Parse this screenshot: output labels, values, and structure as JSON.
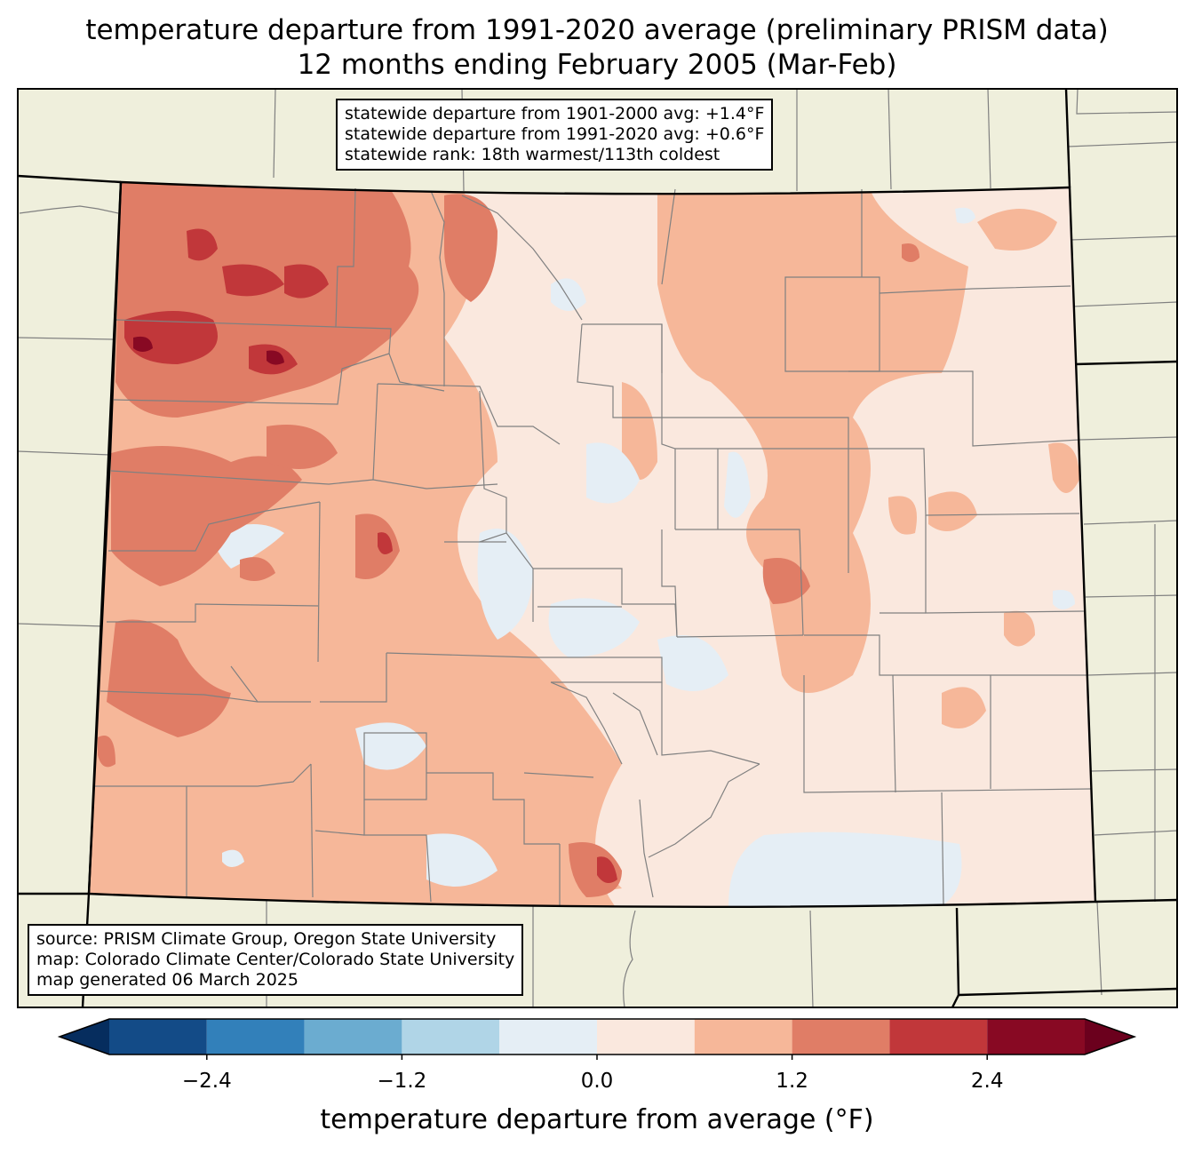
{
  "title": {
    "line1": "temperature departure from 1991-2020 average (preliminary PRISM data)",
    "line2": "12 months ending February 2005 (Mar-Feb)"
  },
  "stats_box": {
    "line1": "statewide departure from 1901-2000 avg: +1.4°F",
    "line2": "statewide departure from 1991-2020 avg: +0.6°F",
    "line3": "statewide rank: 18th warmest/113th coldest"
  },
  "source_box": {
    "line1": "source: PRISM Climate Group, Oregon State University",
    "line2": "map: Colorado Climate Center/Colorado State University",
    "line3": "map generated 06 March 2025"
  },
  "colorbar": {
    "label": "temperature departure from average (°F)",
    "ticks": [
      "−2.4",
      "−1.2",
      "0.0",
      "1.2",
      "2.4"
    ],
    "tick_values": [
      -2.4,
      -1.2,
      0.0,
      1.2,
      2.4
    ],
    "range": [
      -3.0,
      3.0
    ],
    "bins": [
      {
        "from": -3.0,
        "to": -2.4,
        "color": "#134b87"
      },
      {
        "from": -2.4,
        "to": -1.8,
        "color": "#3280ba"
      },
      {
        "from": -1.8,
        "to": -1.2,
        "color": "#6bacd0"
      },
      {
        "from": -1.2,
        "to": -0.6,
        "color": "#b0d5e7"
      },
      {
        "from": -0.6,
        "to": 0.0,
        "color": "#e5eef5"
      },
      {
        "from": 0.0,
        "to": 0.6,
        "color": "#fae8de"
      },
      {
        "from": 0.6,
        "to": 1.2,
        "color": "#f6b799"
      },
      {
        "from": 1.2,
        "to": 1.8,
        "color": "#e07d66"
      },
      {
        "from": 1.8,
        "to": 2.4,
        "color": "#c1373a"
      },
      {
        "from": 2.4,
        "to": 3.0,
        "color": "#880923"
      }
    ],
    "under_color": "#062d5e",
    "over_color": "#6b001d"
  },
  "map_colors": {
    "land": "#efefdc",
    "county_lines": "#808080",
    "state_lines": "#000000"
  }
}
